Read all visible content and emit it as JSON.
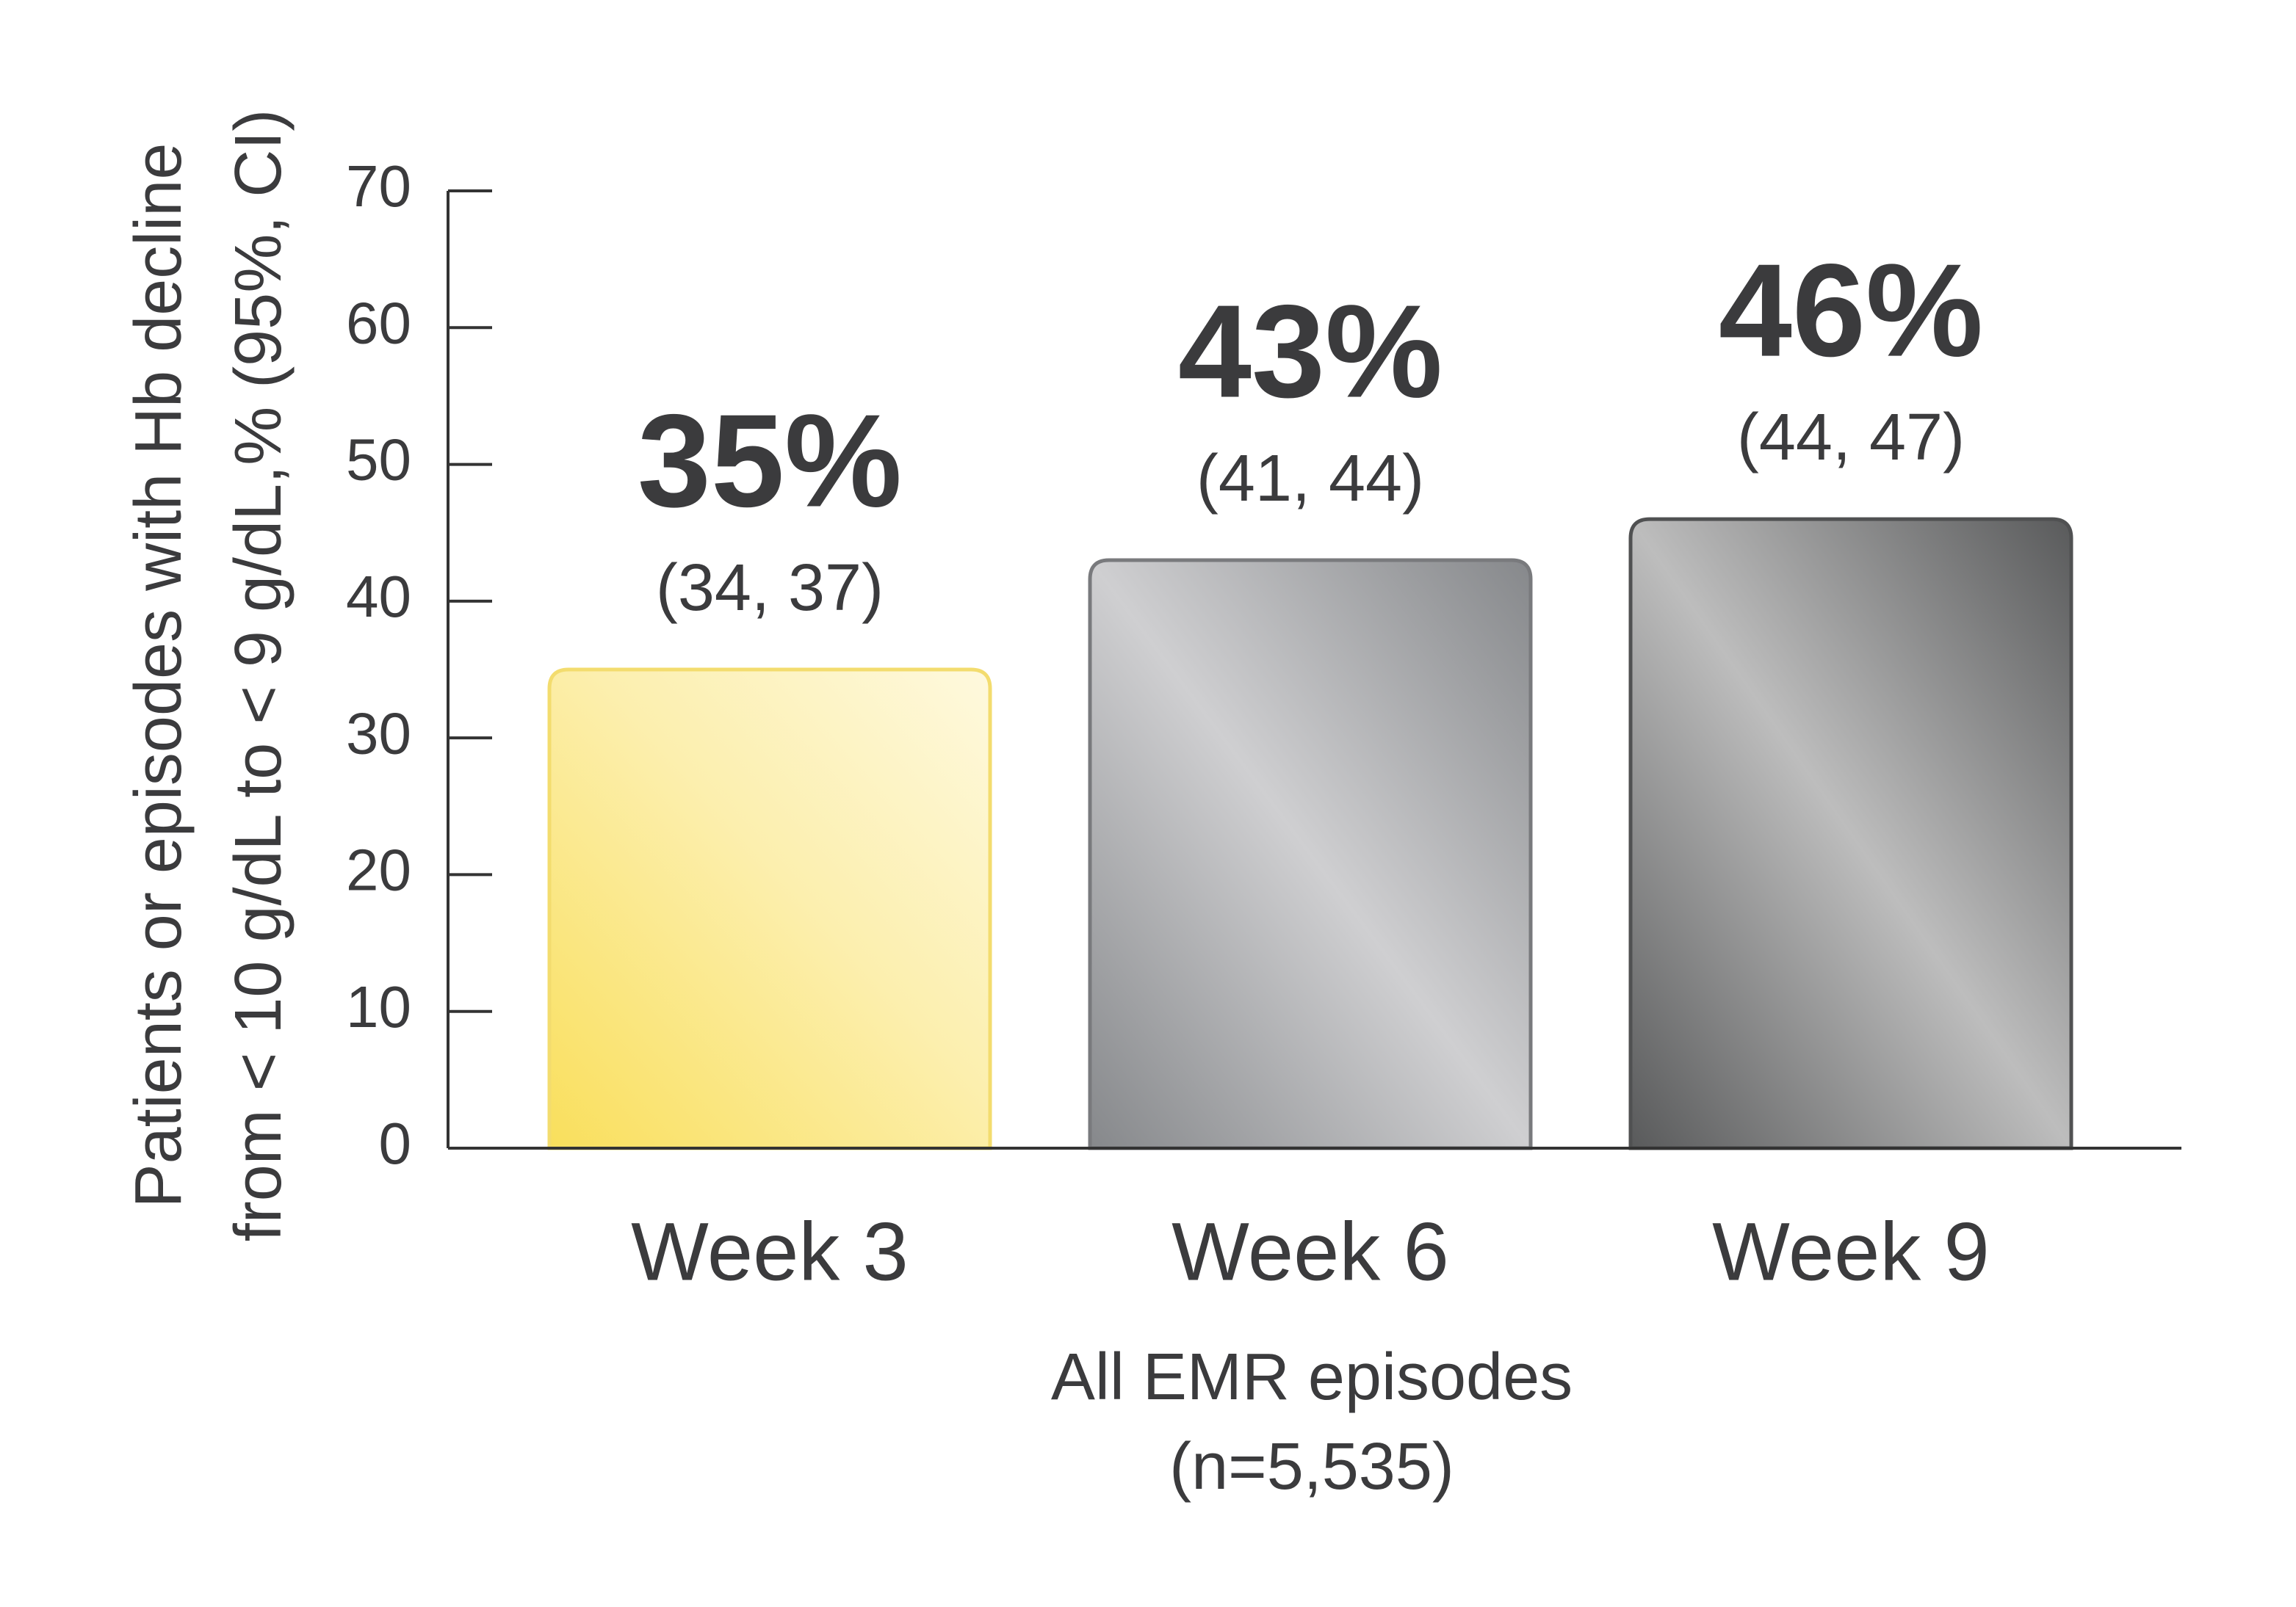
{
  "chart_data": {
    "type": "bar",
    "y_label": [
      "Patients or episodes with Hb decline",
      "from < 10 g/dL to < 9 g/dL,% (95%, CI)"
    ],
    "x_label": [
      "All EMR episodes",
      "(n=5,535)"
    ],
    "categories": [
      "Week 3",
      "Week 6",
      "Week 9"
    ],
    "values": [
      35,
      43,
      46
    ],
    "value_labels": [
      "35%",
      "43%",
      "46%"
    ],
    "ci_labels": [
      "(34, 37)",
      "(41, 44)",
      "(44, 47)"
    ],
    "colors": [
      "#f9df5c",
      "#86888b",
      "#595a5b"
    ],
    "ylim": [
      0,
      70
    ],
    "yticks": [
      0,
      10,
      20,
      30,
      40,
      50,
      60,
      70
    ],
    "grid": false
  }
}
